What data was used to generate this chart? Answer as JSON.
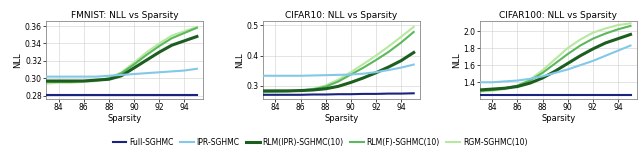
{
  "sparsity": [
    83,
    84,
    85,
    86,
    87,
    88,
    89,
    90,
    91,
    92,
    93,
    94,
    95
  ],
  "fmnist": {
    "title": "FMNIST: NLL vs Sparsity",
    "ylim": [
      0.276,
      0.366
    ],
    "yticks": [
      0.28,
      0.3,
      0.32,
      0.34,
      0.36
    ],
    "ytick_labels": [
      "0.28",
      "0.30",
      "0.32",
      "0.34",
      "0.36"
    ],
    "full_sghmc": [
      0.281,
      0.281,
      0.281,
      0.281,
      0.281,
      0.281,
      0.281,
      0.281,
      0.281,
      0.281,
      0.281,
      0.281,
      0.281
    ],
    "ipr_sghmc": [
      0.302,
      0.302,
      0.302,
      0.302,
      0.302,
      0.303,
      0.304,
      0.305,
      0.306,
      0.307,
      0.308,
      0.309,
      0.311
    ],
    "rlm_ipr": [
      0.297,
      0.297,
      0.297,
      0.297,
      0.298,
      0.299,
      0.303,
      0.312,
      0.321,
      0.33,
      0.338,
      0.343,
      0.348
    ],
    "rlm_f": [
      0.296,
      0.296,
      0.296,
      0.297,
      0.298,
      0.3,
      0.306,
      0.316,
      0.327,
      0.337,
      0.346,
      0.352,
      0.358
    ],
    "rgm": [
      0.294,
      0.295,
      0.295,
      0.296,
      0.297,
      0.3,
      0.307,
      0.318,
      0.33,
      0.34,
      0.349,
      0.354,
      0.359
    ]
  },
  "cifar10": {
    "title": "CIFAR10: NLL vs Sparsity",
    "ylim": [
      0.255,
      0.515
    ],
    "yticks": [
      0.3,
      0.4,
      0.5
    ],
    "ytick_labels": [
      "0.3",
      "0.4",
      "0.5"
    ],
    "full_sghmc": [
      0.27,
      0.27,
      0.27,
      0.27,
      0.271,
      0.271,
      0.272,
      0.272,
      0.273,
      0.273,
      0.274,
      0.274,
      0.275
    ],
    "ipr_sghmc": [
      0.333,
      0.333,
      0.333,
      0.333,
      0.334,
      0.335,
      0.336,
      0.337,
      0.34,
      0.345,
      0.352,
      0.36,
      0.37
    ],
    "rlm_ipr": [
      0.283,
      0.283,
      0.283,
      0.284,
      0.286,
      0.29,
      0.298,
      0.311,
      0.326,
      0.343,
      0.362,
      0.383,
      0.41
    ],
    "rlm_f": [
      0.28,
      0.281,
      0.282,
      0.284,
      0.288,
      0.297,
      0.314,
      0.337,
      0.36,
      0.385,
      0.412,
      0.443,
      0.478
    ],
    "rgm": [
      0.279,
      0.28,
      0.281,
      0.284,
      0.29,
      0.301,
      0.32,
      0.345,
      0.372,
      0.4,
      0.43,
      0.462,
      0.495
    ]
  },
  "cifar100": {
    "title": "CIFAR100: NLL vs Sparsity",
    "ylim": [
      1.2,
      2.12
    ],
    "yticks": [
      1.4,
      1.6,
      1.8,
      2.0
    ],
    "ytick_labels": [
      "1.4",
      "1.6",
      "1.8",
      "2.0"
    ],
    "full_sghmc": [
      1.25,
      1.25,
      1.25,
      1.25,
      1.25,
      1.25,
      1.25,
      1.25,
      1.25,
      1.25,
      1.25,
      1.25,
      1.25
    ],
    "ipr_sghmc": [
      1.4,
      1.4,
      1.41,
      1.42,
      1.44,
      1.47,
      1.51,
      1.55,
      1.6,
      1.65,
      1.71,
      1.77,
      1.83
    ],
    "rlm_ipr": [
      1.31,
      1.32,
      1.33,
      1.35,
      1.39,
      1.45,
      1.53,
      1.62,
      1.71,
      1.79,
      1.86,
      1.91,
      1.96
    ],
    "rlm_f": [
      1.3,
      1.31,
      1.33,
      1.36,
      1.42,
      1.51,
      1.62,
      1.73,
      1.83,
      1.91,
      1.97,
      2.02,
      2.06
    ],
    "rgm": [
      1.29,
      1.3,
      1.32,
      1.36,
      1.43,
      1.54,
      1.67,
      1.8,
      1.9,
      1.98,
      2.03,
      2.07,
      2.09
    ]
  },
  "colors": {
    "full_sghmc": "#1a237e",
    "ipr_sghmc": "#82c8e8",
    "rlm_ipr": "#1b5e20",
    "rlm_f": "#5cb85c",
    "rgm": "#b8e8a0"
  },
  "linewidths": {
    "full_sghmc": 1.5,
    "ipr_sghmc": 1.5,
    "rlm_ipr": 2.2,
    "rlm_f": 1.5,
    "rgm": 1.5
  },
  "xticks": [
    84,
    86,
    88,
    90,
    92,
    94
  ],
  "xlabel": "Sparsity",
  "ylabel": "NLL",
  "legend_labels": [
    "Full-SGHMC",
    "IPR-SGHMC",
    "RLM(IPR)-SGHMC(10)",
    "RLM(F)-SGHMC(10)",
    "RGM-SGHMC(10)"
  ]
}
